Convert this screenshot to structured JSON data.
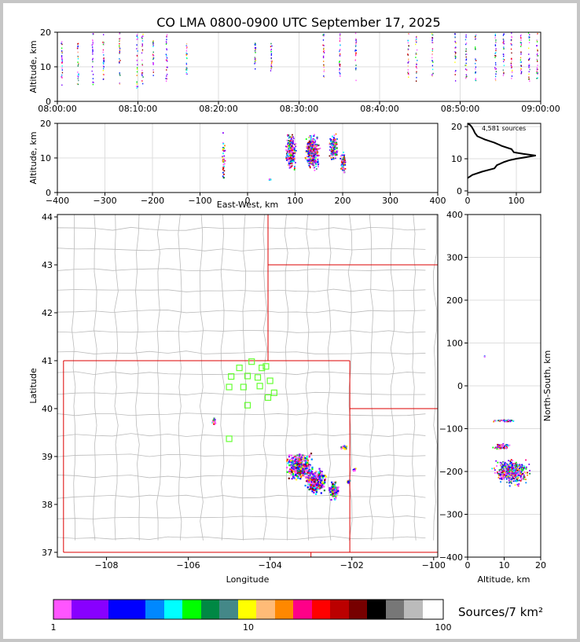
{
  "title": "CO LMA 0800-0900 UTC September 17, 2025",
  "panels": {
    "time_height": {
      "ylabel": "Altitude, km",
      "xticks": [
        "08:00:00",
        "08:10:00",
        "08:20:00",
        "08:30:00",
        "08:40:00",
        "08:50:00",
        "09:00:00"
      ],
      "yticks": [
        "0",
        "10",
        "20"
      ]
    },
    "ew_height": {
      "xlabel": "East-West, km",
      "ylabel": "Altitude, km",
      "xticks": [
        "−400",
        "−300",
        "−200",
        "−100",
        "0",
        "100",
        "200",
        "300",
        "400"
      ],
      "yticks": [
        "0",
        "10",
        "20"
      ]
    },
    "histogram": {
      "annotation": "4,581 sources",
      "xticks": [
        "0",
        "100"
      ],
      "yticks": [
        "0",
        "10",
        "20"
      ]
    },
    "map": {
      "xlabel": "Longitude",
      "ylabel": "Latitude",
      "xticks": [
        "−108",
        "−106",
        "−104",
        "−102",
        "−100"
      ],
      "yticks": [
        "37",
        "38",
        "39",
        "40",
        "41",
        "42",
        "43",
        "44"
      ]
    },
    "ns_height": {
      "xlabel": "Altitude, km",
      "ylabel": "North-South, km",
      "xticks": [
        "0",
        "10",
        "20"
      ],
      "yticks": [
        "−400",
        "−300",
        "−200",
        "−100",
        "0",
        "100",
        "200",
        "300",
        "400"
      ]
    }
  },
  "colorbar": {
    "label": "Sources/7 km²",
    "ticks": [
      "1",
      "10",
      "100"
    ],
    "colors": [
      "#ff55ff",
      "#8800ff",
      "#7700ff",
      "#0000ff",
      "#0022ff",
      "#0088ff",
      "#00ffff",
      "#00ff00",
      "#008844",
      "#448888",
      "#ffff00",
      "#ffbb77",
      "#ff8800",
      "#ff0088",
      "#ff0000",
      "#bb0000",
      "#770000",
      "#000000",
      "#777777",
      "#bbbbbb",
      "#ffffff"
    ]
  },
  "chart_data": [
    {
      "type": "scatter",
      "panel": "time-altitude",
      "ylabel": "Altitude, km",
      "xlim": [
        "08:00:00",
        "09:00:00"
      ],
      "ylim": [
        0,
        20
      ],
      "grid": true,
      "flash_columns": [
        {
          "t": "08:00:30",
          "z": [
            3,
            20
          ]
        },
        {
          "t": "08:02:30",
          "z": [
            4,
            17
          ]
        },
        {
          "t": "08:04:20",
          "z": [
            5,
            20
          ]
        },
        {
          "t": "08:05:40",
          "z": [
            6,
            20
          ]
        },
        {
          "t": "08:07:40",
          "z": [
            5,
            20
          ]
        },
        {
          "t": "08:09:50",
          "z": [
            4,
            20
          ]
        },
        {
          "t": "08:10:30",
          "z": [
            5,
            20
          ]
        },
        {
          "t": "08:11:50",
          "z": [
            7,
            18
          ]
        },
        {
          "t": "08:13:30",
          "z": [
            6,
            20
          ]
        },
        {
          "t": "08:16:00",
          "z": [
            8,
            17
          ]
        },
        {
          "t": "08:24:30",
          "z": [
            9,
            17
          ]
        },
        {
          "t": "08:26:30",
          "z": [
            9,
            17
          ]
        },
        {
          "t": "08:33:00",
          "z": [
            7,
            20
          ]
        },
        {
          "t": "08:35:00",
          "z": [
            7,
            20
          ]
        },
        {
          "t": "08:37:00",
          "z": [
            6,
            20
          ]
        },
        {
          "t": "08:43:30",
          "z": [
            7,
            20
          ]
        },
        {
          "t": "08:44:30",
          "z": [
            6,
            19
          ]
        },
        {
          "t": "08:46:30",
          "z": [
            7,
            20
          ]
        },
        {
          "t": "08:49:20",
          "z": [
            6,
            20
          ]
        },
        {
          "t": "08:50:40",
          "z": [
            6,
            20
          ]
        },
        {
          "t": "08:51:50",
          "z": [
            6,
            20
          ]
        },
        {
          "t": "08:54:20",
          "z": [
            6,
            20
          ]
        },
        {
          "t": "08:55:20",
          "z": [
            7,
            20
          ]
        },
        {
          "t": "08:56:20",
          "z": [
            6,
            20
          ]
        },
        {
          "t": "08:57:30",
          "z": [
            6,
            20
          ]
        },
        {
          "t": "08:58:30",
          "z": [
            6,
            20
          ]
        },
        {
          "t": "08:59:30",
          "z": [
            6,
            20
          ]
        }
      ]
    },
    {
      "type": "heatmap",
      "panel": "east-west-altitude",
      "xlabel": "East-West, km",
      "ylabel": "Altitude, km",
      "xlim": [
        -400,
        400
      ],
      "ylim": [
        0,
        20
      ],
      "clusters": [
        {
          "x": -52,
          "z": 10,
          "wx": 4,
          "wz": 9,
          "n": 40
        },
        {
          "x": 90,
          "z": 12,
          "wx": 12,
          "wz": 6,
          "n": 300
        },
        {
          "x": 135,
          "z": 12,
          "wx": 18,
          "wz": 6,
          "n": 400
        },
        {
          "x": 180,
          "z": 13,
          "wx": 12,
          "wz": 5,
          "n": 150
        },
        {
          "x": 200,
          "z": 9,
          "wx": 8,
          "wz": 4,
          "n": 80
        },
        {
          "x": 45,
          "z": 4,
          "wx": 4,
          "wz": 0.3,
          "n": 8
        }
      ]
    },
    {
      "type": "line",
      "panel": "altitude-histogram",
      "xlim": [
        0,
        150
      ],
      "ylim": [
        0,
        20
      ],
      "x": [
        0,
        10,
        30,
        55,
        60,
        75,
        85,
        100,
        120,
        140,
        115,
        95,
        90,
        70,
        55,
        35,
        20,
        15,
        12,
        8,
        5,
        0
      ],
      "y": [
        4,
        5,
        6,
        7,
        8,
        9,
        9.5,
        10,
        10.5,
        11,
        11.5,
        12,
        13,
        14,
        15,
        16,
        17,
        18,
        19,
        20,
        20.5,
        21
      ]
    },
    {
      "type": "heatmap",
      "panel": "plan-view",
      "xlabel": "Longitude",
      "ylabel": "Latitude",
      "xlim": [
        -109.2,
        -99.9
      ],
      "ylim": [
        36.9,
        44.05
      ],
      "clusters": [
        {
          "lon": -103.3,
          "lat": 38.8,
          "wlon": 0.4,
          "wlat": 0.35,
          "n": 400
        },
        {
          "lon": -102.9,
          "lat": 38.5,
          "wlon": 0.3,
          "wlat": 0.3,
          "n": 300
        },
        {
          "lon": -102.45,
          "lat": 38.3,
          "wlon": 0.15,
          "wlat": 0.25,
          "n": 120
        },
        {
          "lon": -102.2,
          "lat": 39.2,
          "wlon": 0.1,
          "wlat": 0.05,
          "n": 30
        },
        {
          "lon": -101.95,
          "lat": 38.75,
          "wlon": 0.05,
          "wlat": 0.05,
          "n": 10
        },
        {
          "lon": -102.1,
          "lat": 38.5,
          "wlon": 0.05,
          "wlat": 0.05,
          "n": 10
        },
        {
          "lon": -105.4,
          "lat": 39.75,
          "wlon": 0.05,
          "wlat": 0.1,
          "n": 15
        }
      ],
      "stations": [
        {
          "lon": -104.45,
          "lat": 40.98
        },
        {
          "lon": -104.75,
          "lat": 40.85
        },
        {
          "lon": -104.2,
          "lat": 40.85
        },
        {
          "lon": -104.1,
          "lat": 40.88
        },
        {
          "lon": -104.95,
          "lat": 40.67
        },
        {
          "lon": -104.55,
          "lat": 40.68
        },
        {
          "lon": -104.3,
          "lat": 40.65
        },
        {
          "lon": -104.0,
          "lat": 40.58
        },
        {
          "lon": -105.0,
          "lat": 40.45
        },
        {
          "lon": -104.65,
          "lat": 40.45
        },
        {
          "lon": -104.25,
          "lat": 40.47
        },
        {
          "lon": -103.9,
          "lat": 40.33
        },
        {
          "lon": -104.05,
          "lat": 40.23
        },
        {
          "lon": -104.55,
          "lat": 40.07
        },
        {
          "lon": -105.0,
          "lat": 39.37
        }
      ]
    },
    {
      "type": "heatmap",
      "panel": "altitude-north-south",
      "xlabel": "Altitude, km",
      "ylabel": "North-South, km",
      "xlim": [
        0,
        20
      ],
      "ylim": [
        -400,
        400
      ],
      "clusters": [
        {
          "z": 12,
          "y": -200,
          "wz": 6,
          "wy": 35,
          "n": 500
        },
        {
          "z": 9,
          "y": -140,
          "wz": 3,
          "wy": 8,
          "n": 60
        },
        {
          "z": 10,
          "y": -80,
          "wz": 5,
          "wy": 3,
          "n": 40
        },
        {
          "z": 4.5,
          "y": 70,
          "wz": 0.2,
          "wy": 3,
          "n": 3
        }
      ]
    }
  ]
}
